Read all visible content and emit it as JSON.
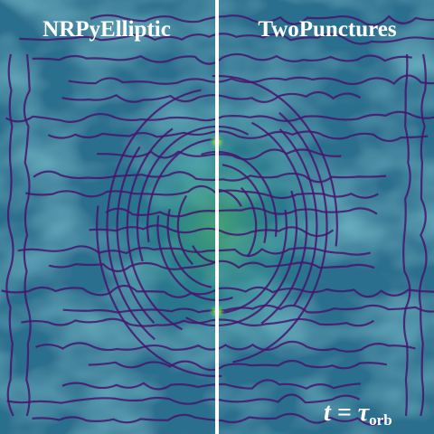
{
  "panels": {
    "left": {
      "title": "NRPyElliptic"
    },
    "right": {
      "title": "TwoPunctures"
    }
  },
  "time_label": {
    "main": "t = τ",
    "subscript": "orb"
  }
}
